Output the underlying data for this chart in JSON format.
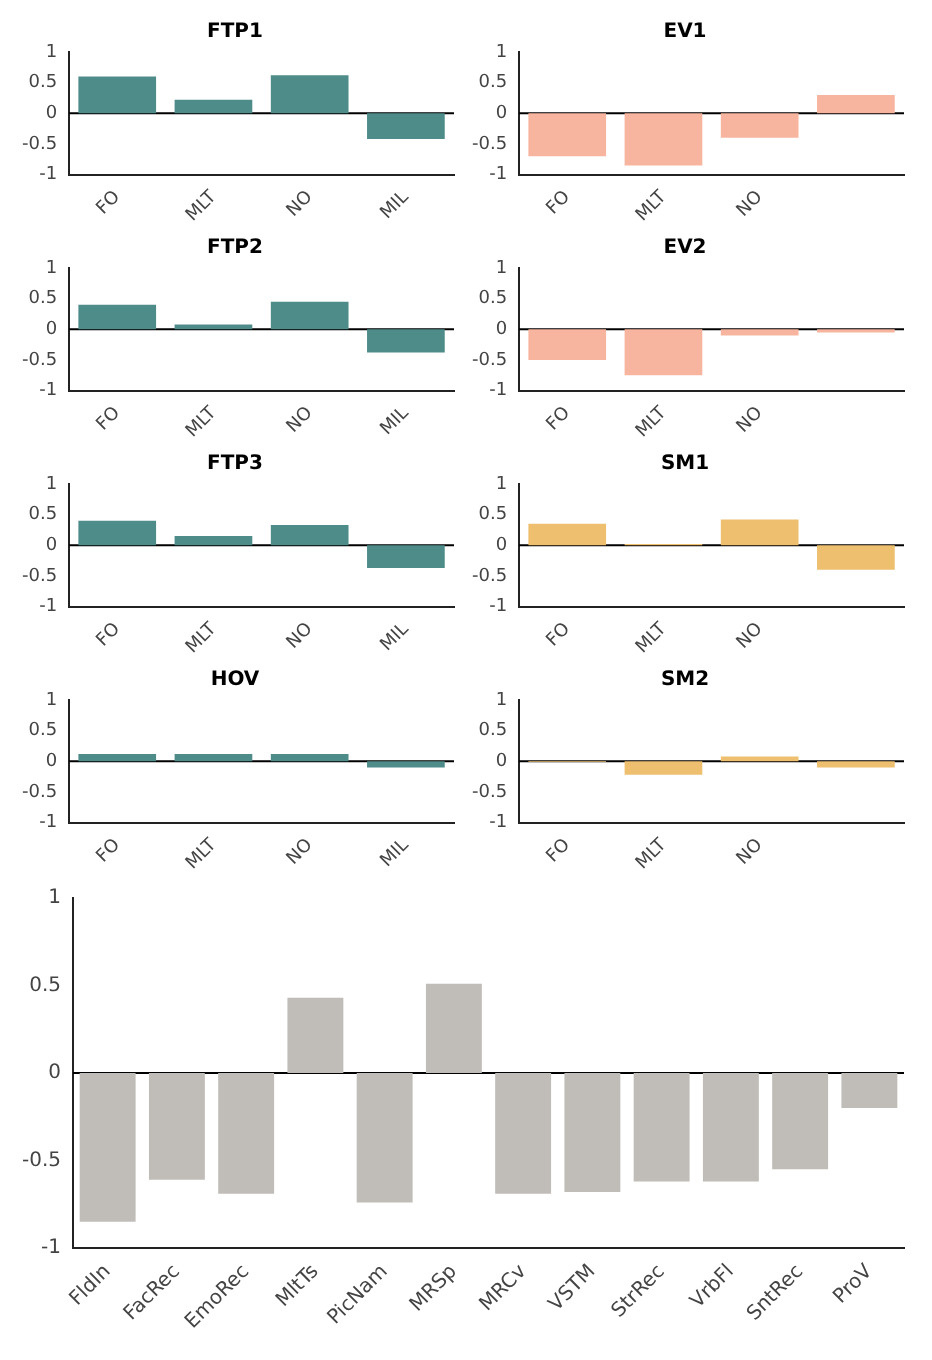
{
  "chart_data": [
    {
      "type": "bar",
      "title": "FTP1",
      "categories": [
        "FO",
        "MLT",
        "NO",
        "MIL"
      ],
      "values": [
        0.6,
        0.22,
        0.62,
        -0.42
      ],
      "color": "#4e8c89",
      "ylim": [
        -1,
        1
      ],
      "yticks": [
        -1,
        -0.5,
        0,
        0.5,
        1
      ],
      "grid": false,
      "legend": false,
      "ref_lines": [
        {
          "axis": "y",
          "value": 0
        }
      ]
    },
    {
      "type": "bar",
      "title": "EV1",
      "categories": [
        "FO",
        "MLT",
        "NO",
        null
      ],
      "values": [
        -0.7,
        -0.85,
        -0.4,
        0.3
      ],
      "color": "#f7b5a0",
      "ylim": [
        -1,
        1
      ],
      "yticks": [
        -1,
        -0.5,
        0,
        0.5,
        1
      ],
      "grid": false,
      "legend": false,
      "ref_lines": [
        {
          "axis": "y",
          "value": 0
        }
      ]
    },
    {
      "type": "bar",
      "title": "FTP2",
      "categories": [
        "FO",
        "MLT",
        "NO",
        "MIL"
      ],
      "values": [
        0.4,
        0.08,
        0.45,
        -0.38
      ],
      "color": "#4e8c89",
      "ylim": [
        -1,
        1
      ],
      "yticks": [
        -1,
        -0.5,
        0,
        0.5,
        1
      ],
      "grid": false,
      "legend": false,
      "ref_lines": [
        {
          "axis": "y",
          "value": 0
        }
      ]
    },
    {
      "type": "bar",
      "title": "EV2",
      "categories": [
        "FO",
        "MLT",
        "NO",
        null
      ],
      "values": [
        -0.5,
        -0.75,
        -0.1,
        -0.05
      ],
      "color": "#f7b5a0",
      "ylim": [
        -1,
        1
      ],
      "yticks": [
        -1,
        -0.5,
        0,
        0.5,
        1
      ],
      "grid": false,
      "legend": false,
      "ref_lines": [
        {
          "axis": "y",
          "value": 0
        }
      ]
    },
    {
      "type": "bar",
      "title": "FTP3",
      "categories": [
        "FO",
        "MLT",
        "NO",
        "MIL"
      ],
      "values": [
        0.4,
        0.15,
        0.33,
        -0.37
      ],
      "color": "#4e8c89",
      "ylim": [
        -1,
        1
      ],
      "yticks": [
        -1,
        -0.5,
        0,
        0.5,
        1
      ],
      "grid": false,
      "legend": false,
      "ref_lines": [
        {
          "axis": "y",
          "value": 0
        }
      ]
    },
    {
      "type": "bar",
      "title": "SM1",
      "categories": [
        "FO",
        "MLT",
        "NO",
        null
      ],
      "values": [
        0.35,
        0.02,
        0.42,
        -0.4
      ],
      "color": "#edbf6f",
      "ylim": [
        -1,
        1
      ],
      "yticks": [
        -1,
        -0.5,
        0,
        0.5,
        1
      ],
      "grid": false,
      "legend": false,
      "ref_lines": [
        {
          "axis": "y",
          "value": 0
        }
      ]
    },
    {
      "type": "bar",
      "title": "HOV",
      "categories": [
        "FO",
        "MLT",
        "NO",
        "MIL"
      ],
      "values": [
        0.12,
        0.12,
        0.12,
        -0.1
      ],
      "color": "#4e8c89",
      "ylim": [
        -1,
        1
      ],
      "yticks": [
        -1,
        -0.5,
        0,
        0.5,
        1
      ],
      "grid": false,
      "legend": false,
      "ref_lines": [
        {
          "axis": "y",
          "value": 0
        }
      ]
    },
    {
      "type": "bar",
      "title": "SM2",
      "categories": [
        "FO",
        "MLT",
        "NO",
        null
      ],
      "values": [
        -0.01,
        -0.22,
        0.08,
        -0.1
      ],
      "color": "#edbf6f",
      "ylim": [
        -1,
        1
      ],
      "yticks": [
        -1,
        -0.5,
        0,
        0.5,
        1
      ],
      "grid": false,
      "legend": false,
      "ref_lines": [
        {
          "axis": "y",
          "value": 0
        }
      ]
    },
    {
      "type": "bar",
      "categories": [
        "FldIn",
        "FacRec",
        "EmoRec",
        "MltTs",
        "PicNam",
        "MRSp",
        "MRCv",
        "VSTM",
        "StrRec",
        "VrbFl",
        "SntRec",
        "ProV"
      ],
      "values": [
        -0.85,
        -0.61,
        -0.69,
        0.43,
        -0.74,
        0.51,
        -0.69,
        -0.68,
        -0.62,
        -0.62,
        -0.55,
        -0.2
      ],
      "color": "#c0bdb8",
      "ylim": [
        -1,
        1
      ],
      "yticks": [
        -1,
        -0.5,
        0,
        0.5,
        1
      ],
      "grid": false,
      "legend": false,
      "ref_lines": [
        {
          "axis": "y",
          "value": 0
        }
      ]
    }
  ]
}
